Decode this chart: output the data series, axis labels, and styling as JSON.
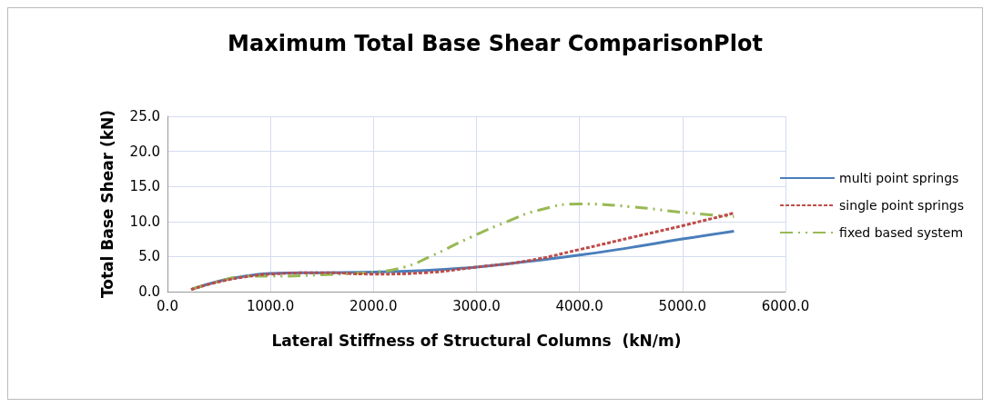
{
  "chart_data": {
    "type": "line",
    "title": "Maximum Total Base Shear ComparisonPlot",
    "xlabel": "Lateral Stiffness of Structural Columns  (kN/m)",
    "ylabel": "Total Base Shear (kN)",
    "xlim": [
      0,
      6000
    ],
    "xticks": [
      {
        "value": 0,
        "label": "0.0"
      },
      {
        "value": 1000,
        "label": "1000.0"
      },
      {
        "value": 2000,
        "label": "2000.0"
      },
      {
        "value": 3000,
        "label": "3000.0"
      },
      {
        "value": 4000,
        "label": "4000.0"
      },
      {
        "value": 5000,
        "label": "5000.0"
      },
      {
        "value": 6000,
        "label": "6000.0"
      }
    ],
    "ylim": [
      0,
      25
    ],
    "yticks": [
      {
        "value": 0,
        "label": "0.0"
      },
      {
        "value": 5,
        "label": "5.0"
      },
      {
        "value": 10,
        "label": "10.0"
      },
      {
        "value": 15,
        "label": "15.0"
      },
      {
        "value": 20,
        "label": "20.0"
      },
      {
        "value": 25,
        "label": "25.0"
      }
    ],
    "grid": true,
    "legend": "right",
    "marker": "none",
    "series": [
      {
        "name": "multi point springs",
        "color": "#4a7ebb",
        "line_style": "solid",
        "x": [
          230,
          500,
          800,
          1000,
          1500,
          2000,
          2500,
          3000,
          3500,
          4000,
          4500,
          5000,
          5500
        ],
        "values": [
          0.3,
          1.5,
          2.3,
          2.6,
          2.7,
          2.8,
          3.0,
          3.5,
          4.3,
          5.2,
          6.3,
          7.5,
          8.6
        ]
      },
      {
        "name": "single point springs",
        "color": "#be4b48",
        "line_style": "dashed",
        "x": [
          230,
          500,
          800,
          1000,
          1500,
          2000,
          2500,
          3000,
          3500,
          4000,
          4500,
          5000,
          5500
        ],
        "values": [
          0.3,
          1.4,
          2.2,
          2.5,
          2.7,
          2.5,
          2.7,
          3.5,
          4.4,
          6.0,
          7.7,
          9.4,
          11.2
        ]
      },
      {
        "name": "fixed based system",
        "color": "#98b954",
        "line_style": "dotted",
        "x": [
          230,
          500,
          800,
          1000,
          1500,
          2000,
          2300,
          2550,
          2950,
          3300,
          3600,
          4000,
          4500,
          5000,
          5500
        ],
        "values": [
          0.3,
          1.5,
          2.2,
          2.2,
          2.4,
          2.8,
          3.5,
          5.0,
          7.8,
          10.0,
          11.6,
          12.5,
          12.1,
          11.3,
          10.7
        ]
      }
    ]
  }
}
